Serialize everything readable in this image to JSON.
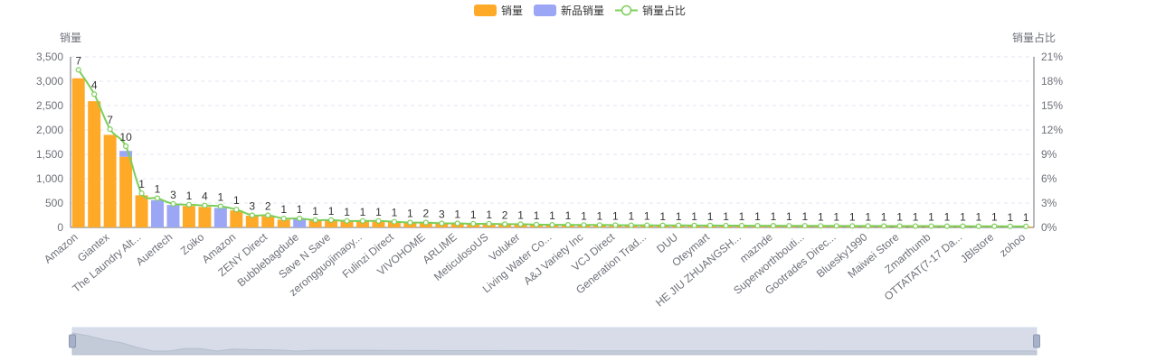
{
  "chart_data": {
    "type": "bar",
    "legend": {
      "items": [
        {
          "label": "销量",
          "color": "#ffa928",
          "shape": "bar"
        },
        {
          "label": "新品销量",
          "color": "#9ba6f5",
          "shape": "bar"
        },
        {
          "label": "销量占比",
          "color": "#7ccf5a",
          "shape": "line"
        }
      ],
      "position": "top-center"
    },
    "y_left": {
      "name": "销量",
      "min": 0,
      "max": 3500,
      "ticks": [
        "0",
        "500",
        "1,000",
        "1,500",
        "2,000",
        "2,500",
        "3,000",
        "3,500"
      ]
    },
    "y_right": {
      "name": "销量占比",
      "min": 0,
      "max": 21,
      "ticks": [
        "0%",
        "3%",
        "6%",
        "9%",
        "12%",
        "15%",
        "18%",
        "21%"
      ]
    },
    "grid": true,
    "x_tick_labels": [
      "Amazon",
      "Giantex",
      "The Laundry Alt...",
      "Auertech",
      "Zoiko",
      "Amazon",
      "ZENY Direct",
      "Bubblebagdude",
      "Save N Save",
      "zerongguojimaoy...",
      "Fulinzi Direct",
      "VIVOHOME",
      "ARLIME",
      "MeticulosoUS",
      "Voluker",
      "Living Water Co...",
      "A&J Variety Inc",
      "VCJ Direct",
      "Generation Trad...",
      "DUU",
      "Oteymart",
      "HE JIU ZHUANGSH...",
      "maznde",
      "Superworthbouti...",
      "Gootrades Direc...",
      "Bluesky1990",
      "Maiwei Store",
      "Zmarthumb",
      "OTTATAT(7-17 Da...",
      "JBlstore",
      "zohoo"
    ],
    "tick_label_every": 2,
    "sales": [
      3060,
      2590,
      1900,
      1450,
      660,
      0,
      0,
      440,
      420,
      0,
      350,
      240,
      230,
      160,
      0,
      140,
      140,
      130,
      130,
      120,
      110,
      90,
      90,
      80,
      80,
      70,
      70,
      60,
      60,
      55,
      50,
      50,
      45,
      45,
      42,
      40,
      40,
      38,
      38,
      36,
      36,
      34,
      34,
      32,
      32,
      30,
      30,
      28,
      28,
      26,
      26,
      25,
      25,
      24,
      24,
      23,
      23,
      22,
      22,
      21,
      20
    ],
    "new_sales": [
      0,
      0,
      0,
      120,
      0,
      560,
      460,
      0,
      0,
      400,
      0,
      0,
      0,
      0,
      180,
      0,
      0,
      0,
      0,
      0,
      0,
      0,
      0,
      0,
      0,
      0,
      0,
      0,
      0,
      0,
      0,
      0,
      0,
      0,
      0,
      0,
      0,
      0,
      0,
      0,
      0,
      0,
      0,
      0,
      0,
      0,
      0,
      0,
      0,
      0,
      0,
      0,
      0,
      0,
      0,
      0,
      0,
      0,
      0,
      0,
      0
    ],
    "share_pct": [
      19.4,
      16.4,
      12.1,
      10.0,
      4.2,
      3.6,
      2.9,
      2.8,
      2.7,
      2.6,
      2.2,
      1.5,
      1.5,
      1.1,
      1.1,
      0.9,
      0.9,
      0.8,
      0.8,
      0.8,
      0.7,
      0.6,
      0.6,
      0.5,
      0.5,
      0.45,
      0.45,
      0.4,
      0.4,
      0.35,
      0.32,
      0.32,
      0.3,
      0.3,
      0.28,
      0.26,
      0.26,
      0.25,
      0.25,
      0.24,
      0.24,
      0.22,
      0.22,
      0.21,
      0.21,
      0.2,
      0.2,
      0.19,
      0.19,
      0.18,
      0.18,
      0.17,
      0.17,
      0.16,
      0.16,
      0.15,
      0.15,
      0.14,
      0.14,
      0.13,
      0.13
    ],
    "point_labels": [
      "7",
      "4",
      "7",
      "10",
      "1",
      "1",
      "3",
      "1",
      "4",
      "1",
      "1",
      "3",
      "2",
      "1",
      "1",
      "1",
      "1",
      "1",
      "1",
      "1",
      "1",
      "1",
      "2",
      "3",
      "1",
      "1",
      "1",
      "2",
      "1",
      "1",
      "1",
      "1",
      "1",
      "1",
      "1",
      "1",
      "1",
      "1",
      "1",
      "1",
      "1",
      "1",
      "1",
      "1",
      "1",
      "1",
      "1",
      "1",
      "1",
      "1",
      "1",
      "1",
      "1",
      "1",
      "1",
      "1",
      "1",
      "1",
      "1",
      "1",
      "1"
    ]
  },
  "data_zoom": {
    "range": [
      0,
      100
    ]
  }
}
